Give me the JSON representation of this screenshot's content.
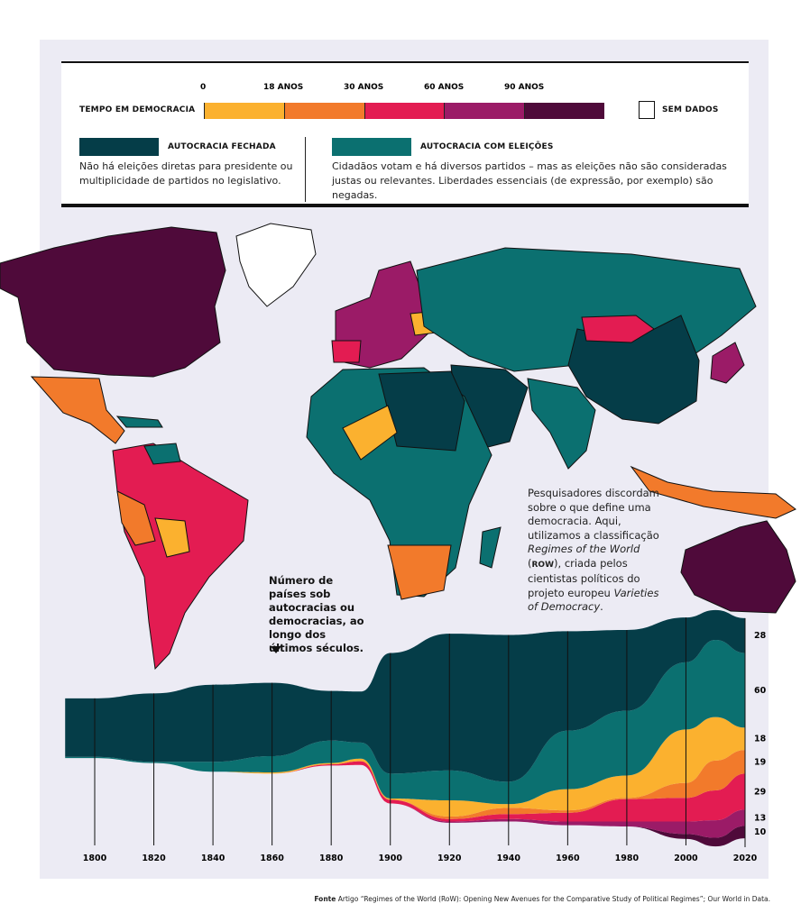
{
  "legend": {
    "title": "TEMPO EM DEMOCRACIA",
    "ticks": [
      "0",
      "18 ANOS",
      "30 ANOS",
      "60 ANOS",
      "90 ANOS"
    ],
    "scale_colors": [
      "#fbb12f",
      "#f27a2b",
      "#e31c52",
      "#9b1b67",
      "#4f0a3a"
    ],
    "no_data": "SEM DADOS",
    "closed": {
      "label": "AUTOCRACIA FECHADA",
      "color": "#053d48",
      "desc": "Não há eleições diretas para presidente ou multiplicidade de partidos no legislativo."
    },
    "electoral": {
      "label": "AUTOCRACIA COM ELEIÇÕES",
      "color": "#0b7070",
      "desc": "Cidadãos votam e há diversos partidos – mas as eleições não são consideradas justas ou relevantes. Liberdades essenciais (de expressão, por exemplo) são negadas."
    }
  },
  "note": {
    "p1": "Pesquisadores dis­cordam sobre o que define uma democracia. Aqui, utilizamos a classificação ",
    "i1": "Regimes of the World",
    "p2": " (",
    "b1": "ROW",
    "p3": "), criada pelos cientistas políticos do projeto europeu ",
    "i2": "Varieties of Democracy",
    "p4": "."
  },
  "callout": "Número de países sob autocracias ou democracias, ao longo dos últimos séculos.",
  "footer": {
    "bold": "Fonte",
    "text": " Artigo “Regimes of the World (RoW): Opening New Avenues for the Comparative Study of Political Regimes”; Our World in Data."
  },
  "chart_data": {
    "type": "area",
    "title": "Número de países sob autocracias ou democracias, ao longo dos últimos séculos",
    "stacking": "silhouette",
    "x": [
      1790,
      1800,
      1820,
      1840,
      1860,
      1880,
      1890,
      1900,
      1920,
      1940,
      1960,
      1980,
      2000,
      2010,
      2020
    ],
    "xticks": [
      "1800",
      "1820",
      "1840",
      "1860",
      "1880",
      "1900",
      "1920",
      "1940",
      "1960",
      "1980",
      "2000",
      "2020"
    ],
    "series": [
      {
        "name": "90+ anos",
        "color": "#4f0a3a",
        "values": [
          0,
          0,
          0,
          0,
          0,
          0,
          0,
          0,
          0,
          0,
          0,
          0,
          4,
          7,
          10
        ]
      },
      {
        "name": "60-90 anos",
        "color": "#9b1b67",
        "values": [
          0,
          0,
          0,
          0,
          0,
          0,
          0,
          0,
          1,
          2,
          3,
          4,
          10,
          14,
          13
        ]
      },
      {
        "name": "30-60 anos",
        "color": "#e31c52",
        "values": [
          0,
          0,
          0,
          0,
          0,
          1,
          3,
          3,
          2,
          4,
          7,
          18,
          19,
          24,
          29
        ]
      },
      {
        "name": "18-30 anos",
        "color": "#f27a2b",
        "values": [
          0,
          0,
          0,
          0,
          0,
          0,
          0,
          0,
          2,
          5,
          2,
          1,
          12,
          24,
          19
        ]
      },
      {
        "name": "0-18 anos",
        "color": "#fbb12f",
        "values": [
          0,
          0,
          0,
          0,
          1,
          1,
          2,
          1,
          13,
          3,
          17,
          18,
          43,
          35,
          18
        ]
      },
      {
        "name": "Autocracia com eleições",
        "color": "#0b7070",
        "values": [
          1,
          1,
          1,
          8,
          13,
          18,
          13,
          20,
          24,
          18,
          47,
          52,
          54,
          62,
          60
        ]
      },
      {
        "name": "Autocracia fechada",
        "color": "#053d48",
        "values": [
          47,
          47,
          55,
          62,
          59,
          40,
          41,
          97,
          110,
          118,
          80,
          65,
          36,
          24,
          28
        ]
      }
    ],
    "end_labels": [
      "10",
      "13",
      "29",
      "19",
      "18",
      "60",
      "28"
    ]
  }
}
